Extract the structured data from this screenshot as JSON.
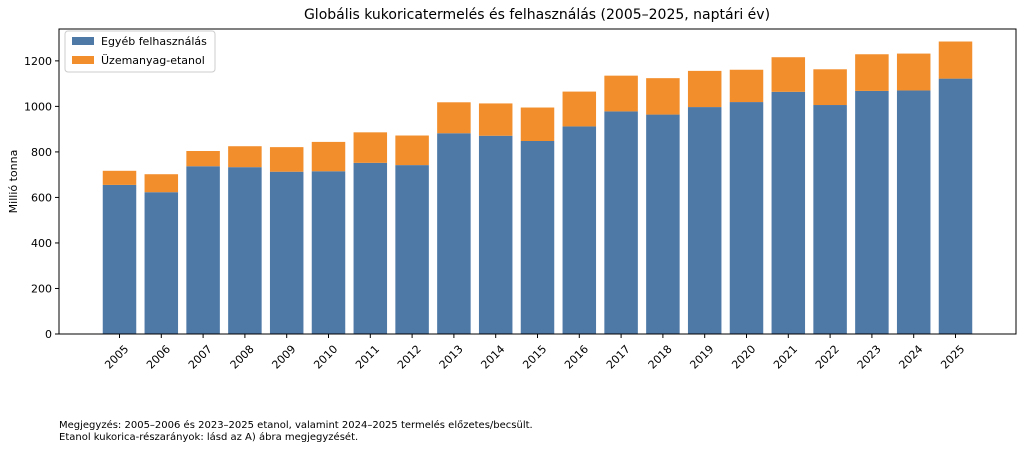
{
  "chart_data": {
    "type": "bar",
    "stacked": true,
    "title": "Globális kukoricatermelés és felhasználás (2005–2025, naptári év)",
    "xlabel": "",
    "ylabel": "Millió tonna",
    "ylim": [
      0,
      1340
    ],
    "yticks": [
      0,
      200,
      400,
      600,
      800,
      1000,
      1200
    ],
    "grid": false,
    "legend_position": "top-left",
    "categories": [
      "2005",
      "2006",
      "2007",
      "2008",
      "2009",
      "2010",
      "2011",
      "2012",
      "2013",
      "2014",
      "2015",
      "2016",
      "2017",
      "2018",
      "2019",
      "2020",
      "2021",
      "2022",
      "2023",
      "2024",
      "2025"
    ],
    "series": [
      {
        "name": "Egyéb felhasználás",
        "color": "#4e79a7",
        "values": [
          655,
          623,
          737,
          733,
          713,
          715,
          752,
          742,
          882,
          871,
          848,
          912,
          978,
          964,
          997,
          1019,
          1064,
          1006,
          1068,
          1070,
          1122
        ]
      },
      {
        "name": "Üzemanyag-etanol",
        "color": "#f28e2b",
        "values": [
          62,
          79,
          67,
          92,
          108,
          129,
          134,
          130,
          136,
          142,
          147,
          153,
          157,
          160,
          159,
          142,
          152,
          157,
          161,
          162,
          163
        ]
      }
    ]
  },
  "notes": [
    "Megjegyzés: 2005–2006 és 2023–2025 etanol, valamint 2024–2025 termelés előzetes/becsült.",
    "Etanol kukorica-részarányok: lásd az A) ábra megjegyzését."
  ]
}
